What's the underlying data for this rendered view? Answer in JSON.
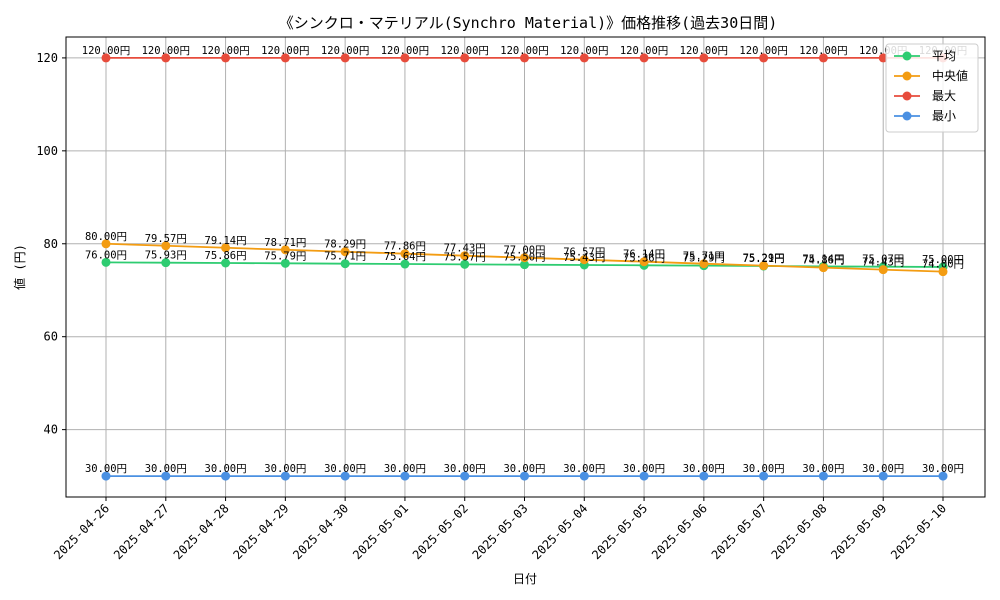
{
  "chart_data": {
    "type": "line",
    "title": "《シンクロ・マテリアル(Synchro Material)》価格推移(過去30日間)",
    "xlabel": "日付",
    "ylabel": "値 (円)",
    "ylim": [
      25.5,
      124.5
    ],
    "yticks": [
      40,
      60,
      80,
      100,
      120
    ],
    "grid": true,
    "legend_position": "top-right",
    "label_suffix": "円",
    "categories": [
      "2025-04-26",
      "2025-04-27",
      "2025-04-28",
      "2025-04-29",
      "2025-04-30",
      "2025-05-01",
      "2025-05-02",
      "2025-05-03",
      "2025-05-04",
      "2025-05-05",
      "2025-05-06",
      "2025-05-07",
      "2025-05-08",
      "2025-05-09",
      "2025-05-10"
    ],
    "series": [
      {
        "name": "平均",
        "color": "#2ecc71",
        "values": [
          76.0,
          75.93,
          75.86,
          75.79,
          75.71,
          75.64,
          75.57,
          75.5,
          75.43,
          75.36,
          75.29,
          75.21,
          75.14,
          75.07,
          75.0
        ]
      },
      {
        "name": "中央値",
        "color": "#f39c12",
        "values": [
          80.0,
          79.57,
          79.14,
          78.71,
          78.29,
          77.86,
          77.43,
          77.0,
          76.57,
          76.14,
          75.71,
          75.29,
          74.86,
          74.43,
          74.0
        ]
      },
      {
        "name": "最大",
        "color": "#e74c3c",
        "values": [
          120.0,
          120.0,
          120.0,
          120.0,
          120.0,
          120.0,
          120.0,
          120.0,
          120.0,
          120.0,
          120.0,
          120.0,
          120.0,
          120.0,
          120.0
        ]
      },
      {
        "name": "最小",
        "color": "#4a90e2",
        "values": [
          30.0,
          30.0,
          30.0,
          30.0,
          30.0,
          30.0,
          30.0,
          30.0,
          30.0,
          30.0,
          30.0,
          30.0,
          30.0,
          30.0,
          30.0
        ]
      }
    ]
  }
}
